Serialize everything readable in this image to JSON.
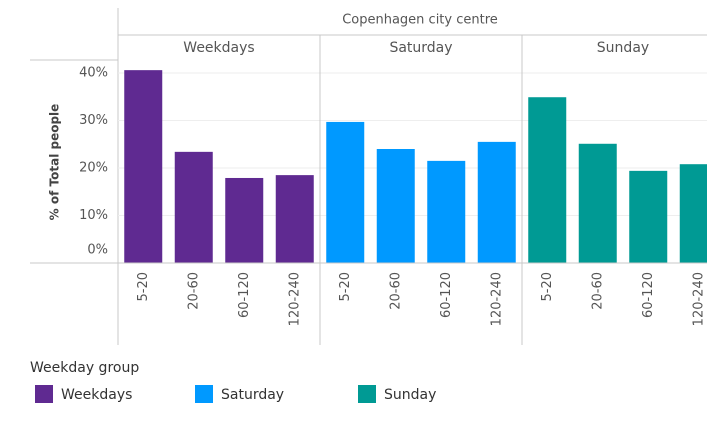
{
  "chart_data": {
    "type": "bar",
    "title": "Copenhagen city centre",
    "ylabel": "% of Total people",
    "categories": [
      "5-20",
      "20-60",
      "60-120",
      "120-240"
    ],
    "series": [
      {
        "name": "Weekdays",
        "color": "#5f2a91",
        "values": [
          40.6,
          23.4,
          17.9,
          18.5
        ]
      },
      {
        "name": "Saturday",
        "color": "#0099ff",
        "values": [
          29.7,
          24.0,
          21.5,
          25.5
        ]
      },
      {
        "name": "Sunday",
        "color": "#009a94",
        "values": [
          34.9,
          25.1,
          19.4,
          20.8
        ]
      }
    ],
    "ylim": [
      0,
      43
    ],
    "yticks": [
      {
        "value": 0,
        "label": "0%"
      },
      {
        "value": 10,
        "label": "10%"
      },
      {
        "value": 20,
        "label": "20%"
      },
      {
        "value": 30,
        "label": "30%"
      },
      {
        "value": 40,
        "label": "40%"
      }
    ],
    "grid": true,
    "legend_title": "Weekday group"
  }
}
